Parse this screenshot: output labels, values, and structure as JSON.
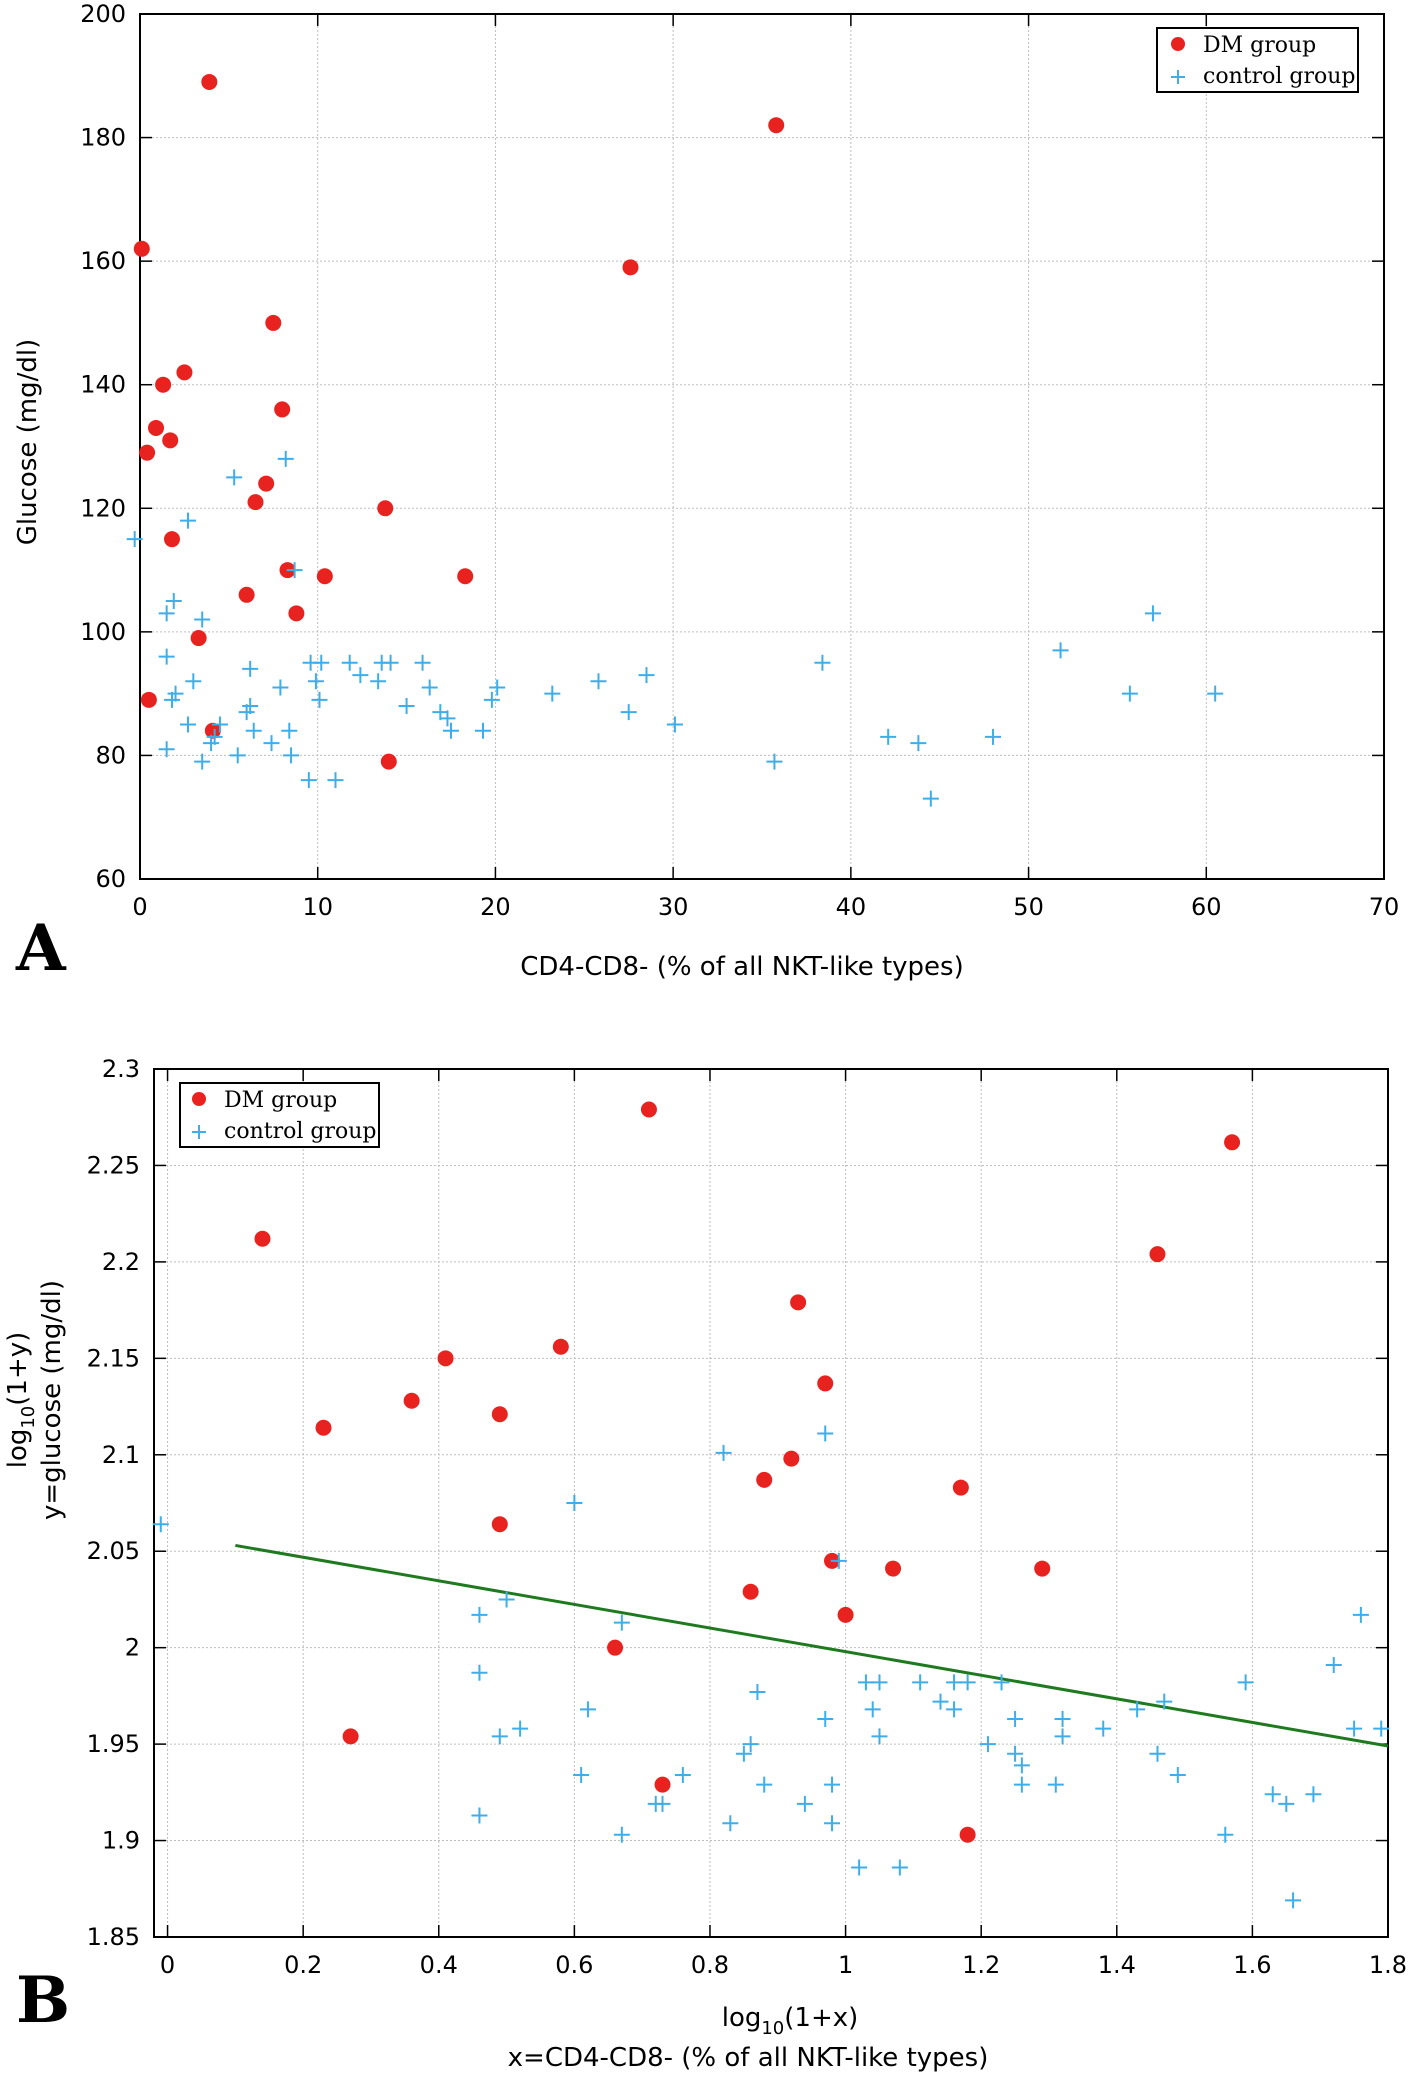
{
  "chart_data": [
    {
      "panel": "A",
      "type": "scatter",
      "title": "",
      "xlabel": "CD4-CD8- (% of all NKT-like types)",
      "ylabel": "Glucose (mg/dl)",
      "xlim": [
        0,
        70
      ],
      "ylim": [
        60,
        200
      ],
      "xticks": [
        0,
        10,
        20,
        30,
        40,
        50,
        60,
        70
      ],
      "yticks": [
        60,
        80,
        100,
        120,
        140,
        160,
        180,
        200
      ],
      "grid": true,
      "legend_position": "top-right",
      "series": [
        {
          "name": "DM group",
          "marker": "circle",
          "color": "#e8231f",
          "points": [
            [
              0.1,
              162
            ],
            [
              0.4,
              129
            ],
            [
              0.5,
              89
            ],
            [
              0.9,
              133
            ],
            [
              1.3,
              140
            ],
            [
              1.7,
              131
            ],
            [
              1.8,
              115
            ],
            [
              2.5,
              142
            ],
            [
              3.3,
              99
            ],
            [
              3.9,
              189
            ],
            [
              4.1,
              84
            ],
            [
              6.0,
              106
            ],
            [
              6.5,
              121
            ],
            [
              7.1,
              124
            ],
            [
              7.5,
              150
            ],
            [
              8.0,
              136
            ],
            [
              8.3,
              110
            ],
            [
              8.8,
              103
            ],
            [
              10.4,
              109
            ],
            [
              13.8,
              120
            ],
            [
              14.0,
              79
            ],
            [
              18.3,
              109
            ],
            [
              27.6,
              159
            ],
            [
              35.8,
              182
            ]
          ]
        },
        {
          "name": "control group",
          "marker": "plus",
          "color": "#3daee9",
          "points": [
            [
              -0.3,
              115
            ],
            [
              1.5,
              103
            ],
            [
              1.5,
              96
            ],
            [
              1.5,
              81
            ],
            [
              1.8,
              89
            ],
            [
              1.9,
              105
            ],
            [
              2.0,
              90
            ],
            [
              2.7,
              118
            ],
            [
              2.7,
              85
            ],
            [
              3.0,
              92
            ],
            [
              3.5,
              102
            ],
            [
              3.5,
              79
            ],
            [
              4.0,
              82
            ],
            [
              4.2,
              83
            ],
            [
              4.5,
              85
            ],
            [
              5.3,
              125
            ],
            [
              5.5,
              80
            ],
            [
              6.0,
              87
            ],
            [
              6.2,
              94
            ],
            [
              6.2,
              88
            ],
            [
              6.4,
              84
            ],
            [
              7.4,
              82
            ],
            [
              7.9,
              91
            ],
            [
              8.2,
              128
            ],
            [
              8.4,
              84
            ],
            [
              8.5,
              80
            ],
            [
              8.7,
              110
            ],
            [
              9.5,
              76
            ],
            [
              9.6,
              95
            ],
            [
              9.9,
              92
            ],
            [
              10.1,
              89
            ],
            [
              10.2,
              95
            ],
            [
              11.0,
              76
            ],
            [
              11.8,
              95
            ],
            [
              12.4,
              93
            ],
            [
              13.4,
              92
            ],
            [
              13.6,
              95
            ],
            [
              14.1,
              95
            ],
            [
              15.0,
              88
            ],
            [
              15.9,
              95
            ],
            [
              16.3,
              91
            ],
            [
              16.9,
              87
            ],
            [
              17.3,
              86
            ],
            [
              17.5,
              84
            ],
            [
              19.3,
              84
            ],
            [
              19.8,
              89
            ],
            [
              20.1,
              91
            ],
            [
              23.2,
              90
            ],
            [
              25.8,
              92
            ],
            [
              27.5,
              87
            ],
            [
              28.5,
              93
            ],
            [
              30.1,
              85
            ],
            [
              35.7,
              79
            ],
            [
              38.4,
              95
            ],
            [
              42.1,
              83
            ],
            [
              43.8,
              82
            ],
            [
              44.5,
              73
            ],
            [
              48.0,
              83
            ],
            [
              51.8,
              97
            ],
            [
              55.7,
              90
            ],
            [
              57.0,
              103
            ],
            [
              60.5,
              90
            ]
          ]
        }
      ]
    },
    {
      "panel": "B",
      "type": "scatter",
      "title": "",
      "xlabel_line1": "log",
      "xlabel_sub": "10",
      "xlabel_rest": "(1+x)",
      "xlabel_line2": "x=CD4-CD8- (% of all NKT-like types)",
      "ylabel_line1_main": "log",
      "ylabel_line1_sub": "10",
      "ylabel_line1_rest": "(1+y)",
      "ylabel_line2": "y=glucose (mg/dl)",
      "xlim": [
        -0.02,
        1.8
      ],
      "ylim": [
        1.85,
        2.3
      ],
      "xticks": [
        0,
        0.2,
        0.4,
        0.6,
        0.8,
        1,
        1.2,
        1.4,
        1.6,
        1.8
      ],
      "yticks": [
        1.85,
        1.9,
        1.95,
        2,
        2.05,
        2.1,
        2.15,
        2.2,
        2.25,
        2.3
      ],
      "grid": true,
      "legend_position": "top-left",
      "fit_line": {
        "color": "#1f7a1f",
        "x": [
          0.1,
          1.8
        ],
        "y": [
          2.053,
          1.949
        ]
      },
      "series": [
        {
          "name": "DM group",
          "marker": "circle",
          "color": "#e8231f",
          "points": [
            [
              0.14,
              2.212
            ],
            [
              0.23,
              2.114
            ],
            [
              0.27,
              1.954
            ],
            [
              0.36,
              2.128
            ],
            [
              0.41,
              2.15
            ],
            [
              0.49,
              2.121
            ],
            [
              0.49,
              2.064
            ],
            [
              0.58,
              2.156
            ],
            [
              0.66,
              2.0
            ],
            [
              0.71,
              2.279
            ],
            [
              0.73,
              1.929
            ],
            [
              0.86,
              2.029
            ],
            [
              0.88,
              2.087
            ],
            [
              0.92,
              2.098
            ],
            [
              0.93,
              2.179
            ],
            [
              0.97,
              2.137
            ],
            [
              0.98,
              2.045
            ],
            [
              1.0,
              2.017
            ],
            [
              1.07,
              2.041
            ],
            [
              1.17,
              2.083
            ],
            [
              1.18,
              1.903
            ],
            [
              1.29,
              2.041
            ],
            [
              1.46,
              2.204
            ],
            [
              1.57,
              2.262
            ]
          ]
        },
        {
          "name": "control group",
          "marker": "plus",
          "color": "#3daee9",
          "points": [
            [
              -0.01,
              2.064
            ],
            [
              0.46,
              2.017
            ],
            [
              0.46,
              1.987
            ],
            [
              0.46,
              1.913
            ],
            [
              0.49,
              1.954
            ],
            [
              0.5,
              2.025
            ],
            [
              0.52,
              1.958
            ],
            [
              0.6,
              2.075
            ],
            [
              0.61,
              1.934
            ],
            [
              0.62,
              1.968
            ],
            [
              0.67,
              2.013
            ],
            [
              0.67,
              1.903
            ],
            [
              0.72,
              1.919
            ],
            [
              0.73,
              1.919
            ],
            [
              0.76,
              1.934
            ],
            [
              0.82,
              2.101
            ],
            [
              0.83,
              1.909
            ],
            [
              0.85,
              1.945
            ],
            [
              0.86,
              1.95
            ],
            [
              0.87,
              1.977
            ],
            [
              0.88,
              1.929
            ],
            [
              0.94,
              1.919
            ],
            [
              0.97,
              1.963
            ],
            [
              0.97,
              2.111
            ],
            [
              0.98,
              1.929
            ],
            [
              0.98,
              1.909
            ],
            [
              0.99,
              2.045
            ],
            [
              1.02,
              1.886
            ],
            [
              1.03,
              1.982
            ],
            [
              1.04,
              1.968
            ],
            [
              1.05,
              1.982
            ],
            [
              1.05,
              1.954
            ],
            [
              1.08,
              1.886
            ],
            [
              1.11,
              1.982
            ],
            [
              1.14,
              1.972
            ],
            [
              1.16,
              1.982
            ],
            [
              1.16,
              1.968
            ],
            [
              1.18,
              1.982
            ],
            [
              1.21,
              1.95
            ],
            [
              1.23,
              1.982
            ],
            [
              1.25,
              1.963
            ],
            [
              1.25,
              1.945
            ],
            [
              1.26,
              1.939
            ],
            [
              1.26,
              1.929
            ],
            [
              1.31,
              1.929
            ],
            [
              1.32,
              1.954
            ],
            [
              1.32,
              1.963
            ],
            [
              1.38,
              1.958
            ],
            [
              1.43,
              1.968
            ],
            [
              1.46,
              1.945
            ],
            [
              1.47,
              1.972
            ],
            [
              1.49,
              1.934
            ],
            [
              1.56,
              1.903
            ],
            [
              1.59,
              1.982
            ],
            [
              1.63,
              1.924
            ],
            [
              1.65,
              1.919
            ],
            [
              1.66,
              1.869
            ],
            [
              1.69,
              1.924
            ],
            [
              1.72,
              1.991
            ],
            [
              1.75,
              1.958
            ],
            [
              1.76,
              2.017
            ],
            [
              1.79,
              1.958
            ]
          ]
        }
      ]
    }
  ]
}
